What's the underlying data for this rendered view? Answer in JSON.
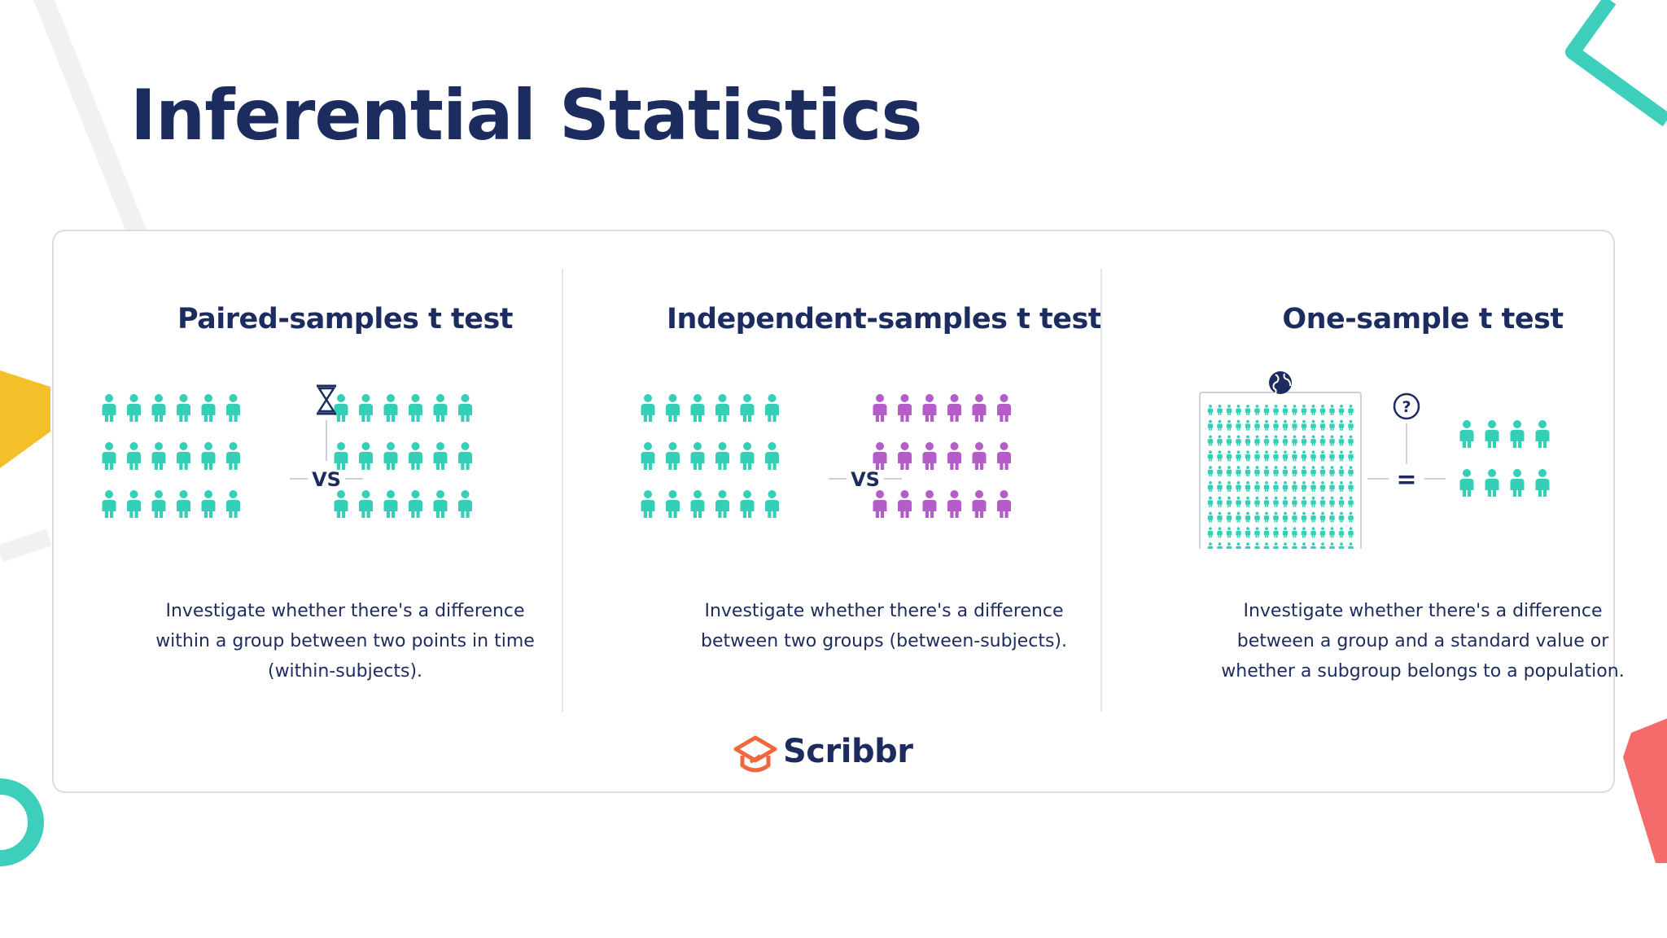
{
  "slide": {
    "title": "Inferential Statistics"
  },
  "panels": [
    {
      "heading": "Paired-samples t test",
      "vs_label": "VS",
      "description": [
        "Investigate whether there's a difference",
        "within a group between two points in time",
        "(within-subjects)."
      ]
    },
    {
      "heading": "Independent-samples t test",
      "vs_label": "VS",
      "description": [
        "Investigate whether there's a difference",
        "between two groups (between-subjects)."
      ]
    },
    {
      "heading": "One-sample t test",
      "eq_label": "=",
      "description": [
        "Investigate whether there's a difference",
        "between a group and a standard value or",
        "whether a subgroup belongs to a population."
      ]
    }
  ],
  "logo": {
    "text": "Scribbr"
  },
  "colors": {
    "title": "#1d2c5e",
    "teal": "#35cfb7",
    "purple": "#b45cc8",
    "logo_orange": "#f0673d",
    "deco_yellow": "#f4c02a",
    "deco_coral": "#f56b6b",
    "deco_teal": "#3dcfbb"
  },
  "icons": [
    "hourglass-icon",
    "globe-icon",
    "question-icon",
    "person-icon",
    "scribbr-logo-icon"
  ]
}
